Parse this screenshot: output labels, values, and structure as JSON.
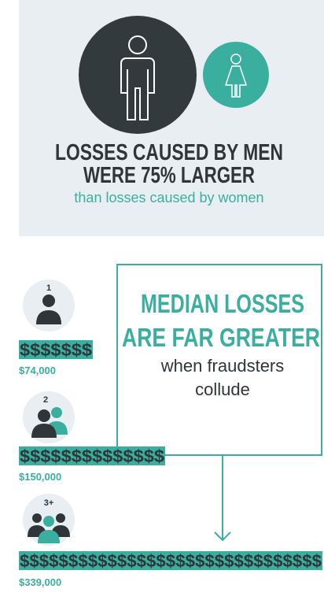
{
  "header": {
    "title_lines": [
      "LOSSES CAUSED BY MEN",
      "WERE 75% LARGER"
    ],
    "subtitle": "than losses caused by women"
  },
  "callout": {
    "title_lines": [
      "MEDIAN LOSSES",
      "ARE FAR GREATER"
    ],
    "text_lines": [
      "when fraudsters",
      "collude"
    ]
  },
  "groups": [
    {
      "count": "1",
      "dollars": "$$$$$$$",
      "amount": "$74,000"
    },
    {
      "count": "2",
      "dollars": "$$$$$$$$$$$$$$",
      "amount": "$150,000"
    },
    {
      "count": "3+",
      "dollars": "$$$$$$$$$$$$$$$$$$$$$$$$$$$$$$$",
      "amount": "$339,000"
    }
  ]
}
